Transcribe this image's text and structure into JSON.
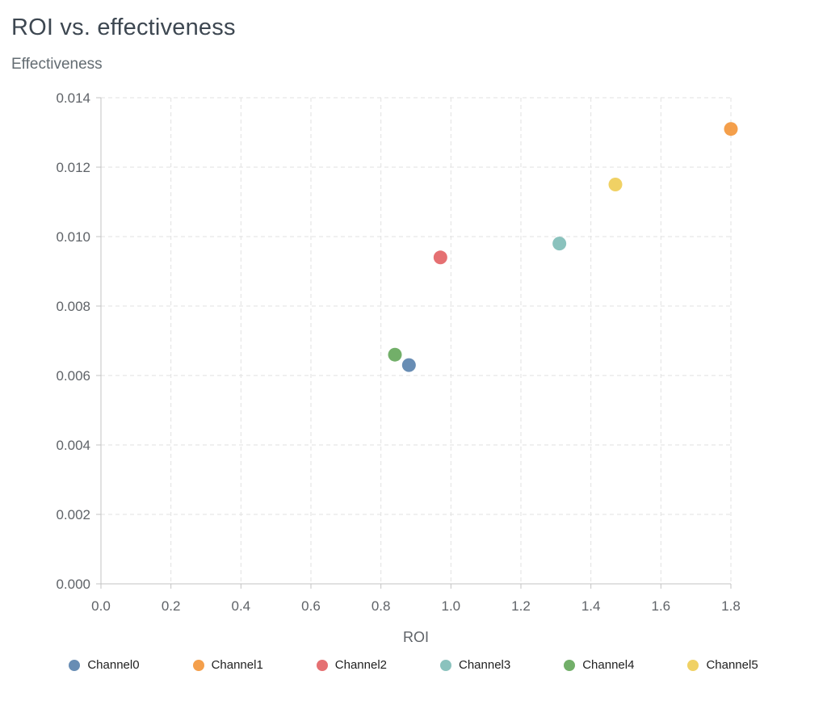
{
  "chart_data": {
    "type": "scatter",
    "title": "ROI vs. effectiveness",
    "xlabel": "ROI",
    "ylabel": "Effectiveness",
    "xlim": [
      0,
      1.8
    ],
    "ylim": [
      0,
      0.014
    ],
    "xticks": [
      0,
      0.2,
      0.4,
      0.6,
      0.8,
      1.0,
      1.2,
      1.4,
      1.6,
      1.8
    ],
    "yticks": [
      0,
      0.002,
      0.004,
      0.006,
      0.008,
      0.01,
      0.012,
      0.014
    ],
    "grid": "dashed",
    "legend_position": "bottom",
    "series": [
      {
        "name": "Channel0",
        "x": 0.88,
        "y": 0.0063,
        "color": "#4E79A7"
      },
      {
        "name": "Channel1",
        "x": 1.8,
        "y": 0.0131,
        "color": "#F28E2B"
      },
      {
        "name": "Channel2",
        "x": 0.97,
        "y": 0.0094,
        "color": "#E15759"
      },
      {
        "name": "Channel3",
        "x": 1.31,
        "y": 0.0098,
        "color": "#76B7B2"
      },
      {
        "name": "Channel4",
        "x": 0.84,
        "y": 0.0066,
        "color": "#59A14F"
      },
      {
        "name": "Channel5",
        "x": 1.47,
        "y": 0.0115,
        "color": "#EDC949"
      }
    ]
  }
}
